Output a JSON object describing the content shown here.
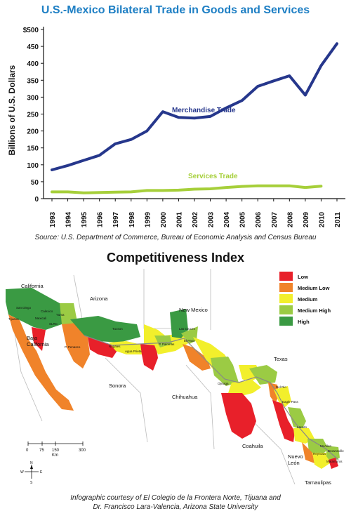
{
  "title": "U.S.-Mexico Bilateral Trade in Goods and Services",
  "source": "Source: U.S. Department of Commerce, Bureau of Economic Analysis and Census Bureau",
  "colors": {
    "title": "#1e7fc4",
    "merchandise": "#26378c",
    "services": "#a6cf3a",
    "low": "#e8202a",
    "medium_low": "#f0832a",
    "medium": "#f2ef2c",
    "medium_high": "#9bcb44",
    "high": "#3a9a43"
  },
  "chart_data": {
    "type": "line",
    "ylabel": "Billions of U.S. Dollars",
    "ylim": [
      0,
      500
    ],
    "y_ticks": [
      "$500",
      "450",
      "400",
      "350",
      "300",
      "250",
      "200",
      "150",
      "100",
      "50",
      "0"
    ],
    "y_tick_values": [
      500,
      450,
      400,
      350,
      300,
      250,
      200,
      150,
      100,
      50,
      0
    ],
    "x": [
      "1993",
      "1994",
      "1995",
      "1996",
      "1997",
      "1998",
      "1999",
      "2000",
      "2001",
      "2002",
      "2003",
      "2004",
      "2005",
      "2006",
      "2007",
      "2008",
      "2009",
      "2010",
      "2011"
    ],
    "series": [
      {
        "name": "Merchandise Trade",
        "values": [
          85,
          98,
          113,
          128,
          162,
          175,
          200,
          257,
          240,
          238,
          243,
          268,
          290,
          332,
          348,
          363,
          306,
          393,
          458
        ]
      },
      {
        "name": "Services Trade",
        "values": [
          20,
          20,
          17,
          18,
          19,
          20,
          24,
          24,
          25,
          28,
          29,
          33,
          36,
          38,
          38,
          38,
          33,
          37,
          null
        ]
      }
    ],
    "grid": false
  },
  "map": {
    "title": "Competitiveness Index",
    "legend": [
      "Low",
      "Medium Low",
      "Medium",
      "Medium High",
      "High"
    ],
    "state_labels": {
      "california": "California",
      "arizona": "Arizona",
      "new_mexico": "New Mexico",
      "texas": "Texas",
      "baja_1": "Baja",
      "baja_2": "California",
      "sonora": "Sonora",
      "chihuahua": "Chihuahua",
      "coahuila": "Coahuila",
      "nuevo_leon_1": "Nuevo",
      "nuevo_leon_2": "León",
      "tamaulipas": "Tamaulipas"
    },
    "city_labels": [
      "San Diego",
      "Calexico",
      "Yuma",
      "Mexicali",
      "SLRC",
      "Tijuana",
      "Tucson",
      "Nogales",
      "Agua Prieta",
      "P. Palomas",
      "Las Cruces",
      "El Paso",
      "Ojinaga",
      "Del Rio",
      "Eagle Pass",
      "Laredo",
      "Reynosa",
      "McAllen",
      "Brownsville",
      "Matamoros",
      "P. Penasco"
    ],
    "scale_labels": [
      "0",
      "75",
      "150",
      "300",
      "Km"
    ],
    "compass": [
      "N",
      "S",
      "E",
      "W"
    ]
  },
  "credit_line1": "Infographic courtesy of El Colegio de la Frontera Norte, Tijuana and",
  "credit_line2": "Dr. Francisco Lara-Valencia, Arizona State University"
}
